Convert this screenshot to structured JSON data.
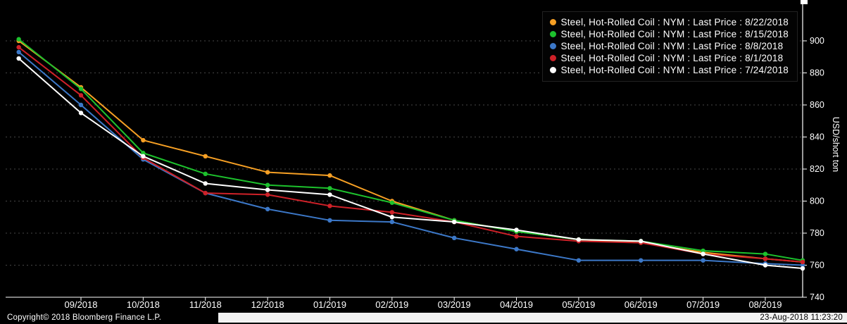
{
  "chart_data": {
    "type": "line",
    "x_tick_labels": [
      "09/2018",
      "10/2018",
      "11/2018",
      "12/2018",
      "01/2019",
      "02/2019",
      "03/2019",
      "04/2019",
      "05/2019",
      "06/2019",
      "07/2019",
      "08/2019"
    ],
    "y_ticks": [
      740,
      760,
      780,
      800,
      820,
      840,
      860,
      880,
      900
    ],
    "ylim": [
      735,
      905
    ],
    "ylabel": "USD/short ton",
    "grid": "horizontal-dotted",
    "legend_position": "top-right",
    "series": [
      {
        "name": "Steel, Hot-Rolled Coil : NYM : Last Price : 8/22/2018",
        "color": "#f7a024",
        "values": [
          900,
          871,
          838,
          828,
          818,
          816,
          800,
          788,
          781,
          776,
          774,
          768,
          764,
          762
        ]
      },
      {
        "name": "Steel, Hot-Rolled Coil : NYM : Last Price : 8/15/2018",
        "color": "#1dc22d",
        "values": [
          901,
          870,
          830,
          817,
          810,
          808,
          799,
          788,
          781,
          776,
          775,
          769,
          767,
          763
        ]
      },
      {
        "name": "Steel, Hot-Rolled Coil : NYM : Last Price : 8/8/2018",
        "color": "#3c78c8",
        "values": [
          893,
          860,
          826,
          805,
          795,
          788,
          787,
          777,
          770,
          763,
          763,
          763,
          761,
          760
        ]
      },
      {
        "name": "Steel, Hot-Rolled Coil : NYM : Last Price : 8/1/2018",
        "color": "#cf2128",
        "values": [
          896,
          866,
          827,
          805,
          804,
          797,
          793,
          787,
          778,
          775,
          774,
          767,
          764,
          762
        ]
      },
      {
        "name": "Steel, Hot-Rolled Coil : NYM : Last Price : 7/24/2018",
        "color": "#ffffff",
        "values": [
          889,
          855,
          828,
          811,
          807,
          804,
          790,
          787,
          782,
          776,
          775,
          767,
          760,
          758
        ]
      }
    ]
  },
  "footer": {
    "copyright": "Copyright© 2018 Bloomberg Finance L.P.",
    "timestamp": "23-Aug-2018 11:23:20"
  },
  "colors": {
    "background": "#000000",
    "grid": "#474747",
    "axis": "#ffffff"
  }
}
